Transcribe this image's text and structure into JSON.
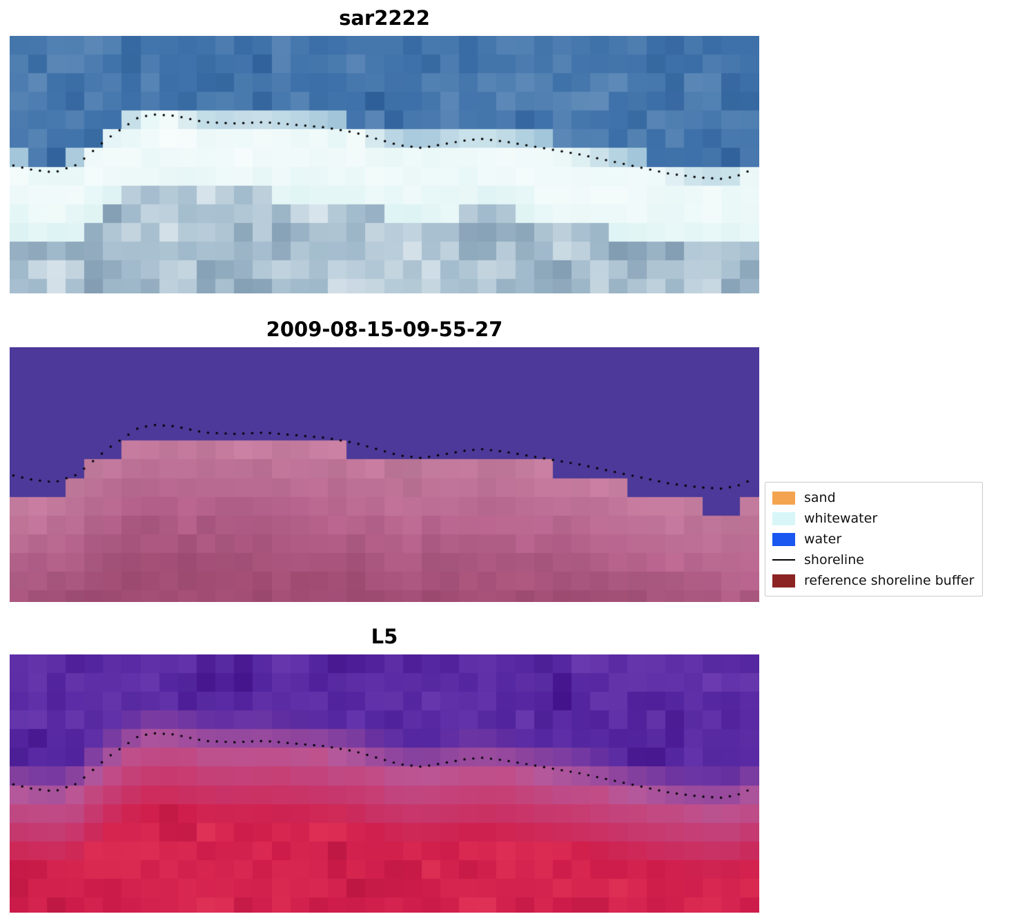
{
  "figure": {
    "background": "#ffffff",
    "panels": [
      {
        "id": "sar2222",
        "title": "sar2222",
        "style": "rgb",
        "seed": 11,
        "palette": {
          "water": "#3f72aa",
          "water_dark": "#2e5e97",
          "water_light": "#6f97c0",
          "whitewater": "#f2fbfa",
          "whitewater_cyan": "#cfeef0",
          "beach": "#a3bccd",
          "beach_light": "#dde8ee",
          "beach_dark": "#829cb2"
        }
      },
      {
        "id": "classified",
        "title": "2009-08-15-09-55-27",
        "style": "classified",
        "seed": 22,
        "palette": {
          "water_class": "#4c3999",
          "pink_light": "#c47e9f",
          "pink": "#b5638c",
          "pink_dark": "#a04c73"
        }
      },
      {
        "id": "L5",
        "title": "L5",
        "style": "falsecolor",
        "seed": 33,
        "palette": {
          "purple": "#5527a0",
          "purple_dark": "#43138b",
          "purple_light": "#6d3cb2",
          "pink": "#b85a9b",
          "red": "#cf1d4b",
          "red_bright": "#e03156",
          "red_dark": "#b51540"
        }
      }
    ],
    "legend": {
      "entries": [
        {
          "label": "sand",
          "type": "patch",
          "color": "#f4a44e"
        },
        {
          "label": "whitewater",
          "type": "patch",
          "color": "#d8f6f7"
        },
        {
          "label": "water",
          "type": "patch",
          "color": "#1a56f0"
        },
        {
          "label": "shoreline",
          "type": "line",
          "color": "#000000"
        },
        {
          "label": "reference shoreline buffer",
          "type": "patch",
          "color": "#8b2422"
        }
      ]
    },
    "shoreline": {
      "color": "#000000"
    }
  },
  "chart_data": {
    "type": "heatmap",
    "subplot_titles": [
      "sar2222",
      "2009-08-15-09-55-27",
      "L5"
    ],
    "legend_entries": [
      "sand",
      "whitewater",
      "water",
      "shoreline",
      "reference shoreline buffer"
    ],
    "layout": {
      "rows": 3,
      "cols": 1,
      "legend_position": "center right",
      "grid": false
    },
    "series": [
      {
        "name": "shoreline",
        "points": [
          [
            0.0,
            0.5
          ],
          [
            0.03,
            0.52
          ],
          [
            0.06,
            0.53
          ],
          [
            0.09,
            0.5
          ],
          [
            0.13,
            0.4
          ],
          [
            0.17,
            0.32
          ],
          [
            0.19,
            0.305
          ],
          [
            0.22,
            0.31
          ],
          [
            0.26,
            0.335
          ],
          [
            0.3,
            0.34
          ],
          [
            0.34,
            0.335
          ],
          [
            0.38,
            0.345
          ],
          [
            0.42,
            0.355
          ],
          [
            0.46,
            0.375
          ],
          [
            0.49,
            0.4
          ],
          [
            0.52,
            0.425
          ],
          [
            0.55,
            0.435
          ],
          [
            0.58,
            0.42
          ],
          [
            0.61,
            0.405
          ],
          [
            0.63,
            0.4
          ],
          [
            0.66,
            0.41
          ],
          [
            0.69,
            0.425
          ],
          [
            0.72,
            0.44
          ],
          [
            0.76,
            0.46
          ],
          [
            0.8,
            0.485
          ],
          [
            0.84,
            0.51
          ],
          [
            0.88,
            0.535
          ],
          [
            0.92,
            0.55
          ],
          [
            0.95,
            0.555
          ],
          [
            0.97,
            0.545
          ],
          [
            0.99,
            0.52
          ],
          [
            1.0,
            0.51
          ]
        ]
      }
    ]
  }
}
